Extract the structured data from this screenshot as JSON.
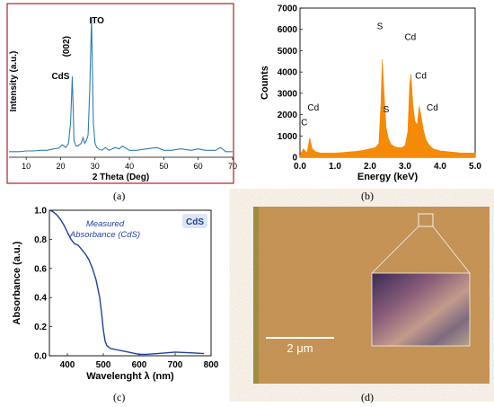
{
  "chart_data": [
    {
      "type": "line",
      "panel": "a",
      "xlabel": "2 Theta (Deg)",
      "ylabel": "Intensity (a.u.)",
      "xlim": [
        5,
        70
      ],
      "x_ticks": [
        10,
        20,
        30,
        40,
        50,
        60,
        70
      ],
      "color": "#2f7db3",
      "frame_color": "#b22222",
      "annotations": [
        {
          "text": "CdS",
          "x": 20.0,
          "y": 0.56
        },
        {
          "text": "(002)",
          "x": 22.5,
          "y": 0.72,
          "rotate": true
        },
        {
          "text": "ITO",
          "x": 30.5,
          "y": 0.96
        }
      ],
      "series": [
        {
          "x": [
            5,
            8,
            10,
            12,
            14,
            16,
            18,
            19.5,
            20.5,
            21.5,
            22.3,
            22.9,
            23.4,
            23.9,
            24.5,
            25,
            26,
            26.5,
            27,
            27.5,
            28,
            28.5,
            29,
            29.5,
            30,
            30.5,
            31,
            32,
            33,
            34,
            35,
            36,
            37,
            38,
            40,
            42,
            45,
            48,
            50,
            52,
            55,
            58,
            60,
            62,
            65,
            66.5,
            68,
            70
          ],
          "y": [
            0.04,
            0.04,
            0.045,
            0.045,
            0.05,
            0.05,
            0.06,
            0.065,
            0.09,
            0.07,
            0.1,
            0.25,
            0.58,
            0.12,
            0.08,
            0.08,
            0.1,
            0.14,
            0.1,
            0.12,
            0.16,
            0.5,
            1.0,
            0.25,
            0.1,
            0.07,
            0.06,
            0.05,
            0.07,
            0.05,
            0.06,
            0.07,
            0.06,
            0.08,
            0.05,
            0.05,
            0.06,
            0.07,
            0.05,
            0.05,
            0.06,
            0.05,
            0.06,
            0.05,
            0.05,
            0.07,
            0.04,
            0.04
          ]
        }
      ]
    },
    {
      "type": "area",
      "panel": "b",
      "xlabel": "Energy (keV)",
      "ylabel": "Counts",
      "xlim": [
        0,
        5.0
      ],
      "ylim": [
        0,
        7000
      ],
      "x_ticks": [
        "0.0",
        "1.0",
        "2.0",
        "3.0",
        "4.0",
        "5.0"
      ],
      "y_ticks": [
        "0",
        "1000",
        "2000",
        "3000",
        "4000",
        "5000",
        "6000",
        "7000"
      ],
      "color": "#f58a07",
      "annotations": [
        {
          "text": "C",
          "x": 0.12,
          "y": 1500
        },
        {
          "text": "Cd",
          "x": 0.38,
          "y": 2200
        },
        {
          "text": "S",
          "x": 2.28,
          "y": 6000
        },
        {
          "text": "S",
          "x": 2.46,
          "y": 2100
        },
        {
          "text": "Cd",
          "x": 3.15,
          "y": 5500
        },
        {
          "text": "Cd",
          "x": 3.45,
          "y": 3700
        },
        {
          "text": "Cd",
          "x": 3.78,
          "y": 2200
        }
      ],
      "series": [
        {
          "x": [
            0,
            0.1,
            0.2,
            0.28,
            0.35,
            0.45,
            0.6,
            0.8,
            1.0,
            1.2,
            1.4,
            1.6,
            1.8,
            2.0,
            2.15,
            2.25,
            2.31,
            2.35,
            2.4,
            2.46,
            2.52,
            2.6,
            2.7,
            2.8,
            2.9,
            3.0,
            3.08,
            3.13,
            3.17,
            3.22,
            3.28,
            3.35,
            3.4,
            3.45,
            3.52,
            3.6,
            3.7,
            3.8,
            4.0,
            4.3,
            4.6,
            5.0
          ],
          "y": [
            100,
            400,
            200,
            900,
            400,
            250,
            200,
            200,
            200,
            220,
            250,
            280,
            320,
            400,
            450,
            650,
            2500,
            4600,
            3000,
            1400,
            900,
            600,
            500,
            450,
            450,
            550,
            1200,
            3400,
            3900,
            2500,
            1700,
            1500,
            2400,
            2000,
            1300,
            800,
            550,
            400,
            300,
            250,
            200,
            200
          ]
        }
      ]
    },
    {
      "type": "line",
      "panel": "c",
      "xlabel": "Wavelenght λ (nm)",
      "ylabel": "Absorbance (a.u.)",
      "xlim": [
        350,
        800
      ],
      "ylim": [
        0,
        1.0
      ],
      "x_ticks": [
        "400",
        "500",
        "600",
        "700",
        "800"
      ],
      "y_ticks": [
        "0.0",
        "0.2",
        "0.4",
        "0.6",
        "0.8",
        "1.0"
      ],
      "color": "#1f3f9c",
      "annotation": "Measured\nAbsorbance (CdS)",
      "legend_label": "CdS",
      "legend_position": "top-right",
      "series": [
        {
          "x": [
            350,
            360,
            370,
            380,
            390,
            400,
            410,
            420,
            430,
            440,
            450,
            460,
            470,
            480,
            490,
            495,
            500,
            505,
            510,
            520,
            540,
            560,
            580,
            600,
            620,
            650,
            700,
            750,
            780
          ],
          "y": [
            1.0,
            0.99,
            0.97,
            0.94,
            0.9,
            0.85,
            0.8,
            0.77,
            0.76,
            0.73,
            0.7,
            0.66,
            0.6,
            0.52,
            0.4,
            0.3,
            0.18,
            0.1,
            0.07,
            0.05,
            0.04,
            0.03,
            0.02,
            0.01,
            0.01,
            0.015,
            0.025,
            0.02,
            0.015
          ]
        }
      ]
    }
  ],
  "micrograph": {
    "panel": "d",
    "scale_bar_label": "2 μm"
  },
  "captions": [
    "(a)",
    "(b)",
    "(c)",
    "(d)"
  ]
}
